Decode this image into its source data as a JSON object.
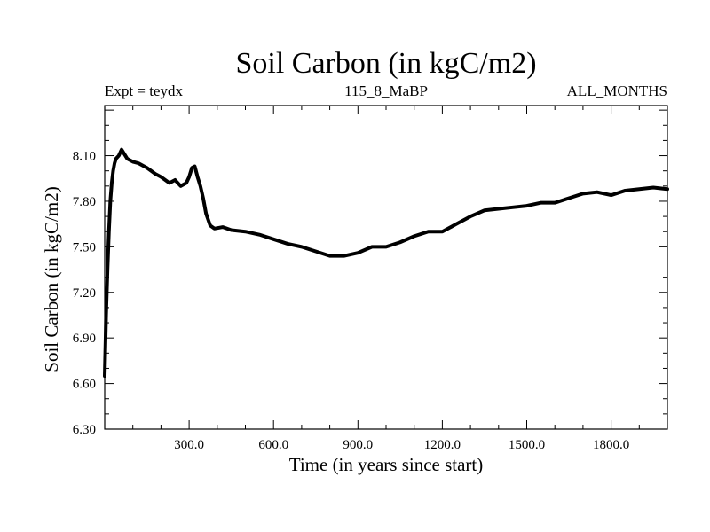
{
  "chart_data": {
    "type": "line",
    "title": "Soil Carbon (in kgC/m2)",
    "subtitle_left": "Expt = teydx",
    "subtitle_center": "115_8_MaBP",
    "subtitle_right": "ALL_MONTHS",
    "xlabel": "Time (in years since start)",
    "ylabel": "Soil Carbon (in kgC/m2)",
    "xlim": [
      0,
      2000
    ],
    "ylim": [
      6.3,
      8.43
    ],
    "xticks": [
      300,
      600,
      900,
      1200,
      1500,
      1800
    ],
    "xtick_labels": [
      "300.0",
      "600.0",
      "900.0",
      "1200.0",
      "1500.0",
      "1800.0"
    ],
    "yticks": [
      6.3,
      6.6,
      6.9,
      7.2,
      7.5,
      7.8,
      8.1
    ],
    "ytick_labels": [
      "6.30",
      "6.60",
      "6.90",
      "7.20",
      "7.50",
      "7.80",
      "8.10"
    ],
    "grid": false,
    "line_color": "#000000",
    "series": [
      {
        "x": [
          0,
          5,
          10,
          15,
          20,
          25,
          30,
          35,
          40,
          50,
          60,
          70,
          80,
          100,
          120,
          150,
          180,
          200,
          230,
          250,
          270,
          290,
          300,
          310,
          320,
          330,
          340,
          350,
          360,
          375,
          390,
          420,
          450,
          500,
          550,
          600,
          650,
          700,
          750,
          800,
          850,
          900,
          950,
          1000,
          1050,
          1100,
          1150,
          1200,
          1250,
          1300,
          1350,
          1400,
          1450,
          1500,
          1550,
          1600,
          1650,
          1700,
          1750,
          1800,
          1850,
          1900,
          1950,
          2000
        ],
        "y": [
          6.65,
          7.05,
          7.35,
          7.6,
          7.8,
          7.92,
          8.0,
          8.05,
          8.08,
          8.1,
          8.14,
          8.11,
          8.08,
          8.06,
          8.05,
          8.02,
          7.98,
          7.96,
          7.92,
          7.94,
          7.9,
          7.92,
          7.96,
          8.02,
          8.03,
          7.96,
          7.9,
          7.82,
          7.72,
          7.64,
          7.62,
          7.63,
          7.61,
          7.6,
          7.58,
          7.55,
          7.52,
          7.5,
          7.47,
          7.44,
          7.44,
          7.46,
          7.5,
          7.5,
          7.53,
          7.57,
          7.6,
          7.6,
          7.65,
          7.7,
          7.74,
          7.75,
          7.76,
          7.77,
          7.79,
          7.79,
          7.82,
          7.85,
          7.86,
          7.84,
          7.87,
          7.88,
          7.89,
          7.88
        ]
      }
    ]
  }
}
